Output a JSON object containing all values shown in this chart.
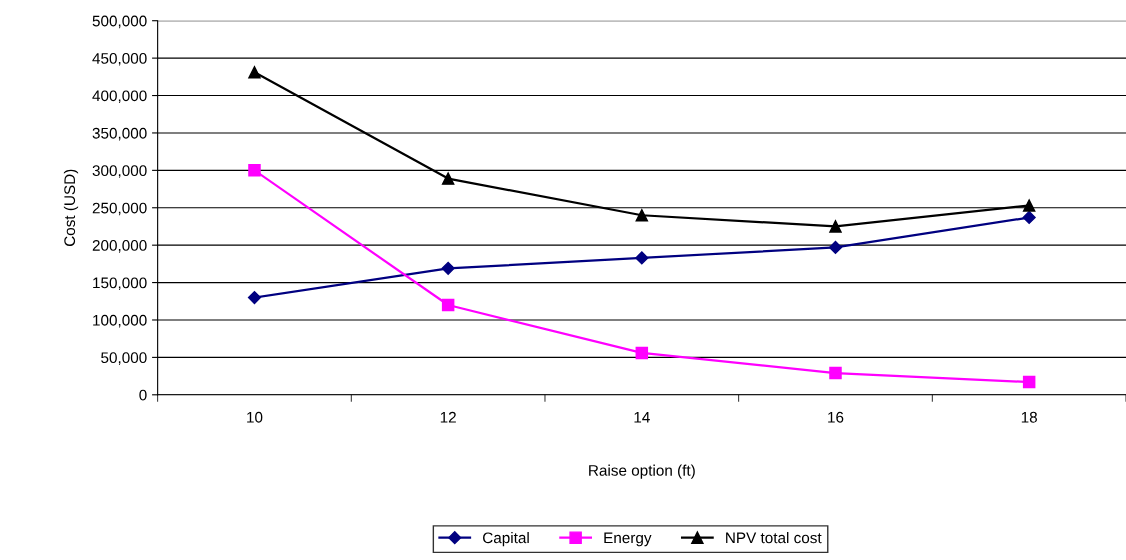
{
  "chart_data": {
    "type": "line",
    "xlabel": "Raise option (ft)",
    "ylabel": "Cost (USD)",
    "categories": [
      "10",
      "12",
      "14",
      "16",
      "18"
    ],
    "ylim": [
      0,
      500000
    ],
    "yticks": [
      {
        "value": 0,
        "label": "0"
      },
      {
        "value": 50000,
        "label": "50,000"
      },
      {
        "value": 100000,
        "label": "100,000"
      },
      {
        "value": 150000,
        "label": "150,000"
      },
      {
        "value": 200000,
        "label": "200,000"
      },
      {
        "value": 250000,
        "label": "250,000"
      },
      {
        "value": 300000,
        "label": "300,000"
      },
      {
        "value": 350000,
        "label": "350,000"
      },
      {
        "value": 400000,
        "label": "400,000"
      },
      {
        "value": 450000,
        "label": "450,000"
      },
      {
        "value": 500000,
        "label": "500,000"
      }
    ],
    "grid": "y",
    "legend": "bottom",
    "line_style": "solid",
    "series": [
      {
        "name": "Capital",
        "color": "#000080",
        "marker": "diamond",
        "values": [
          130000,
          169000,
          183000,
          197000,
          237000
        ]
      },
      {
        "name": "Energy",
        "color": "#ff00ff",
        "marker": "square",
        "values": [
          300000,
          120000,
          56000,
          29000,
          17000
        ]
      },
      {
        "name": "NPV total cost",
        "color": "#000000",
        "marker": "triangle",
        "values": [
          431000,
          289000,
          240000,
          225000,
          253000
        ]
      }
    ]
  }
}
